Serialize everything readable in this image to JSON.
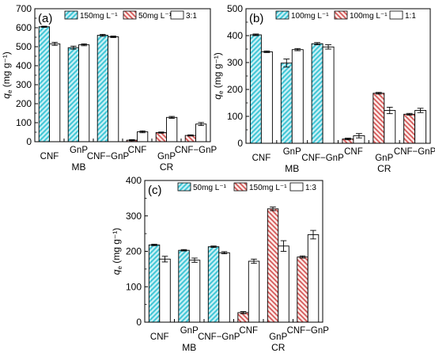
{
  "colors": {
    "cyan_hatch": "#40c6d6",
    "red_hatch": "#d45a5a",
    "red_hatch_bg": "#fde9e6",
    "axis": "#000000",
    "bar_outline": "#000000",
    "plain_fill": "#ffffff"
  },
  "chart_data": [
    {
      "panel_label": "(a)",
      "type": "bar",
      "ylabel_main": "q",
      "ylabel_sub": "e",
      "ylabel_unit": "(mg g⁻¹)",
      "ylim": [
        0,
        700
      ],
      "yticks": [
        "0",
        "100",
        "200",
        "300",
        "400",
        "500",
        "600",
        "700"
      ],
      "legend": [
        {
          "label": "150mg L⁻¹",
          "pattern": "cyan"
        },
        {
          "label": "50mg L⁻¹",
          "pattern": "red"
        },
        {
          "label": "3:1",
          "pattern": "plain"
        }
      ],
      "categories": [
        "CNF",
        "GnP",
        "CNF−GnP",
        "CNF",
        "GnP",
        "CNF−GnP"
      ],
      "groups": [
        {
          "label": "MB",
          "from": 0,
          "to": 2
        },
        {
          "label": "CR",
          "from": 3,
          "to": 5
        }
      ],
      "bars": [
        {
          "cat": 0,
          "pattern": "cyan",
          "value": 605,
          "err": 3
        },
        {
          "cat": 0,
          "pattern": "plain",
          "value": 515,
          "err": 8
        },
        {
          "cat": 1,
          "pattern": "cyan",
          "value": 495,
          "err": 8
        },
        {
          "cat": 1,
          "pattern": "plain",
          "value": 510,
          "err": 5
        },
        {
          "cat": 2,
          "pattern": "cyan",
          "value": 560,
          "err": 5
        },
        {
          "cat": 2,
          "pattern": "plain",
          "value": 552,
          "err": 4
        },
        {
          "cat": 3,
          "pattern": "red",
          "value": 8,
          "err": 3
        },
        {
          "cat": 3,
          "pattern": "plain",
          "value": 52,
          "err": 5
        },
        {
          "cat": 4,
          "pattern": "red",
          "value": 48,
          "err": 3
        },
        {
          "cat": 4,
          "pattern": "plain",
          "value": 128,
          "err": 5
        },
        {
          "cat": 5,
          "pattern": "red",
          "value": 33,
          "err": 3
        },
        {
          "cat": 5,
          "pattern": "plain",
          "value": 93,
          "err": 8
        }
      ]
    },
    {
      "panel_label": "(b)",
      "type": "bar",
      "ylabel_main": "q",
      "ylabel_sub": "e",
      "ylabel_unit": "(mg g⁻¹)",
      "ylim": [
        0,
        500
      ],
      "yticks": [
        "0",
        "100",
        "200",
        "300",
        "400",
        "500"
      ],
      "legend": [
        {
          "label": "100mg L⁻¹",
          "pattern": "cyan"
        },
        {
          "label": "100mg L⁻¹",
          "pattern": "red"
        },
        {
          "label": "1:1",
          "pattern": "plain"
        }
      ],
      "categories": [
        "CNF",
        "GnP",
        "CNF−GnP",
        "CNF",
        "GnP",
        "CNF−GnP"
      ],
      "groups": [
        {
          "label": "MB",
          "from": 0,
          "to": 2
        },
        {
          "label": "CR",
          "from": 3,
          "to": 5
        }
      ],
      "bars": [
        {
          "cat": 0,
          "pattern": "cyan",
          "value": 403,
          "err": 3
        },
        {
          "cat": 0,
          "pattern": "plain",
          "value": 340,
          "err": 3
        },
        {
          "cat": 1,
          "pattern": "cyan",
          "value": 298,
          "err": 15
        },
        {
          "cat": 1,
          "pattern": "plain",
          "value": 348,
          "err": 4
        },
        {
          "cat": 2,
          "pattern": "cyan",
          "value": 370,
          "err": 4
        },
        {
          "cat": 2,
          "pattern": "plain",
          "value": 358,
          "err": 8
        },
        {
          "cat": 3,
          "pattern": "red",
          "value": 16,
          "err": 3
        },
        {
          "cat": 3,
          "pattern": "plain",
          "value": 28,
          "err": 8
        },
        {
          "cat": 4,
          "pattern": "red",
          "value": 186,
          "err": 3
        },
        {
          "cat": 4,
          "pattern": "plain",
          "value": 122,
          "err": 12
        },
        {
          "cat": 5,
          "pattern": "red",
          "value": 108,
          "err": 3
        },
        {
          "cat": 5,
          "pattern": "plain",
          "value": 122,
          "err": 8
        }
      ]
    },
    {
      "panel_label": "(c)",
      "type": "bar",
      "ylabel_main": "q",
      "ylabel_sub": "e",
      "ylabel_unit": "(mg g⁻¹)",
      "ylim": [
        0,
        400
      ],
      "yticks": [
        "0",
        "100",
        "200",
        "300",
        "400"
      ],
      "legend": [
        {
          "label": "50mg L⁻¹",
          "pattern": "cyan"
        },
        {
          "label": "150mg L⁻¹",
          "pattern": "red"
        },
        {
          "label": "1:3",
          "pattern": "plain"
        }
      ],
      "categories": [
        "CNF",
        "GnP",
        "CNF−GnP",
        "CNF",
        "GnP",
        "CNF−GnP"
      ],
      "groups": [
        {
          "label": "MB",
          "from": 0,
          "to": 2
        },
        {
          "label": "CR",
          "from": 3,
          "to": 5
        }
      ],
      "bars": [
        {
          "cat": 0,
          "pattern": "cyan",
          "value": 218,
          "err": 2
        },
        {
          "cat": 0,
          "pattern": "plain",
          "value": 178,
          "err": 8
        },
        {
          "cat": 1,
          "pattern": "cyan",
          "value": 203,
          "err": 2
        },
        {
          "cat": 1,
          "pattern": "plain",
          "value": 175,
          "err": 6
        },
        {
          "cat": 2,
          "pattern": "cyan",
          "value": 213,
          "err": 2
        },
        {
          "cat": 2,
          "pattern": "plain",
          "value": 196,
          "err": 3
        },
        {
          "cat": 3,
          "pattern": "red",
          "value": 27,
          "err": 3
        },
        {
          "cat": 3,
          "pattern": "plain",
          "value": 172,
          "err": 6
        },
        {
          "cat": 4,
          "pattern": "red",
          "value": 320,
          "err": 5
        },
        {
          "cat": 4,
          "pattern": "plain",
          "value": 215,
          "err": 15
        },
        {
          "cat": 5,
          "pattern": "red",
          "value": 184,
          "err": 3
        },
        {
          "cat": 5,
          "pattern": "plain",
          "value": 247,
          "err": 12
        }
      ]
    }
  ]
}
